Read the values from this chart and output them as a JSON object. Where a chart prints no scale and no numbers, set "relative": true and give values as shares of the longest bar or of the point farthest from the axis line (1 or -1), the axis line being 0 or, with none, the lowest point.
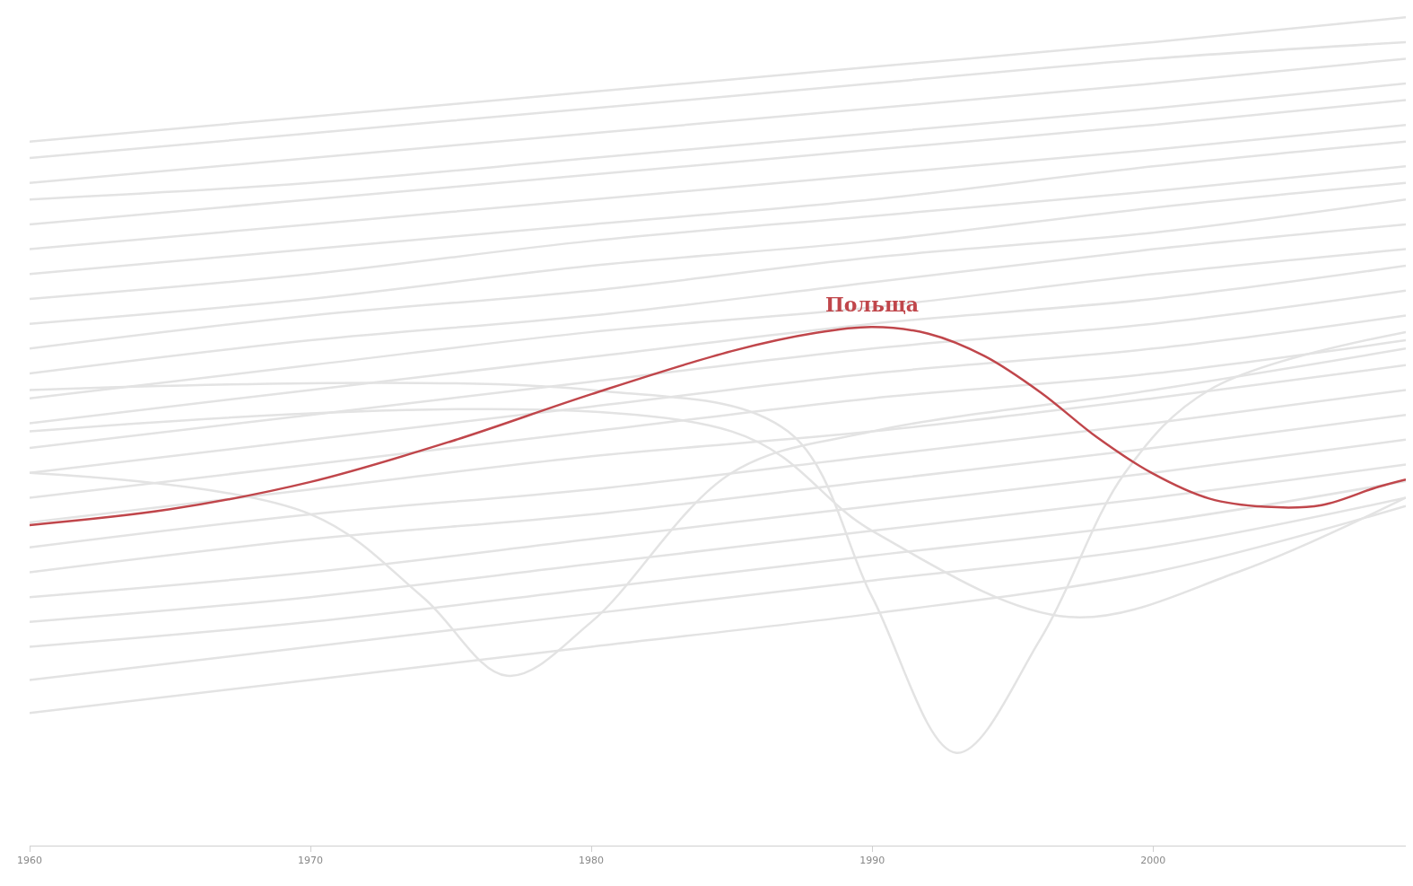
{
  "chart_data": {
    "type": "line",
    "relative": true,
    "marker": "none",
    "line_style": "solid",
    "xlim": [
      1960,
      2009
    ],
    "xticks": [
      1960,
      1970,
      1980,
      1990,
      2000
    ],
    "annotations": [
      {
        "text": "Польща",
        "x": 1990,
        "y": 0.626
      }
    ],
    "series": [
      {
        "color": "#e3e3e3",
        "x": [
          1960,
          1970,
          1980,
          1990,
          2000,
          2009
        ],
        "values": [
          0.85,
          0.88,
          0.91,
          0.94,
          0.97,
          1.0
        ]
      },
      {
        "color": "#e3e3e3",
        "x": [
          1960,
          1970,
          1980,
          1990,
          2000,
          2009
        ],
        "values": [
          0.83,
          0.86,
          0.89,
          0.92,
          0.95,
          0.97
        ]
      },
      {
        "color": "#e3e3e3",
        "x": [
          1960,
          1970,
          1980,
          1990,
          2000,
          2009
        ],
        "values": [
          0.8,
          0.83,
          0.86,
          0.89,
          0.92,
          0.95
        ]
      },
      {
        "color": "#e3e3e3",
        "x": [
          1960,
          1970,
          1980,
          1990,
          2000,
          2009
        ],
        "values": [
          0.78,
          0.8,
          0.83,
          0.86,
          0.89,
          0.92
        ]
      },
      {
        "color": "#e3e3e3",
        "x": [
          1960,
          1970,
          1980,
          1990,
          2000,
          2009
        ],
        "values": [
          0.75,
          0.78,
          0.81,
          0.84,
          0.87,
          0.9
        ]
      },
      {
        "color": "#e3e3e3",
        "x": [
          1960,
          1970,
          1980,
          1990,
          2000,
          2009
        ],
        "values": [
          0.72,
          0.75,
          0.78,
          0.81,
          0.84,
          0.87
        ]
      },
      {
        "color": "#e3e3e3",
        "x": [
          1960,
          1970,
          1980,
          1990,
          2000,
          2009
        ],
        "values": [
          0.69,
          0.72,
          0.75,
          0.78,
          0.82,
          0.85
        ]
      },
      {
        "color": "#e3e3e3",
        "x": [
          1960,
          1970,
          1980,
          1990,
          2000,
          2009
        ],
        "values": [
          0.66,
          0.69,
          0.73,
          0.76,
          0.79,
          0.82
        ]
      },
      {
        "color": "#e3e3e3",
        "x": [
          1960,
          1970,
          1980,
          1990,
          2000,
          2009
        ],
        "values": [
          0.63,
          0.66,
          0.7,
          0.73,
          0.77,
          0.8
        ]
      },
      {
        "color": "#e3e3e3",
        "x": [
          1960,
          1970,
          1980,
          1990,
          2000,
          2009
        ],
        "values": [
          0.6,
          0.64,
          0.67,
          0.71,
          0.74,
          0.78
        ]
      },
      {
        "color": "#e3e3e3",
        "x": [
          1960,
          1970,
          1980,
          1990,
          2000,
          2009
        ],
        "values": [
          0.57,
          0.61,
          0.64,
          0.68,
          0.72,
          0.75
        ]
      },
      {
        "color": "#e3e3e3",
        "x": [
          1960,
          1970,
          1980,
          1990,
          2000,
          2009
        ],
        "values": [
          0.54,
          0.58,
          0.62,
          0.65,
          0.69,
          0.72
        ]
      },
      {
        "color": "#e3e3e3",
        "x": [
          1960,
          1970,
          1980,
          1990,
          2000,
          2009
        ],
        "values": [
          0.51,
          0.55,
          0.59,
          0.63,
          0.66,
          0.7
        ]
      },
      {
        "color": "#e3e3e3",
        "x": [
          1960,
          1970,
          1980,
          1990,
          2000,
          2009
        ],
        "values": [
          0.48,
          0.52,
          0.56,
          0.6,
          0.63,
          0.67
        ]
      },
      {
        "color": "#e3e3e3",
        "x": [
          1960,
          1970,
          1980,
          1990,
          2000,
          2009
        ],
        "values": [
          0.45,
          0.49,
          0.53,
          0.57,
          0.6,
          0.64
        ]
      },
      {
        "color": "#e3e3e3",
        "x": [
          1960,
          1970,
          1980,
          1990,
          2000,
          2009
        ],
        "values": [
          0.42,
          0.46,
          0.5,
          0.54,
          0.57,
          0.61
        ]
      },
      {
        "color": "#e3e3e3",
        "x": [
          1960,
          1970,
          1980,
          1990,
          2000,
          2009
        ],
        "values": [
          0.39,
          0.43,
          0.47,
          0.5,
          0.54,
          0.58
        ]
      },
      {
        "color": "#e3e3e3",
        "x": [
          1960,
          1970,
          1980,
          1990,
          2000,
          2009
        ],
        "values": [
          0.36,
          0.4,
          0.43,
          0.47,
          0.51,
          0.55
        ]
      },
      {
        "color": "#e3e3e3",
        "x": [
          1960,
          1970,
          1980,
          1990,
          2000,
          2009
        ],
        "values": [
          0.33,
          0.37,
          0.4,
          0.44,
          0.48,
          0.52
        ]
      },
      {
        "color": "#e3e3e3",
        "x": [
          1960,
          1970,
          1980,
          1990,
          2000,
          2009
        ],
        "values": [
          0.3,
          0.33,
          0.37,
          0.41,
          0.45,
          0.49
        ]
      },
      {
        "color": "#e3e3e3",
        "x": [
          1960,
          1970,
          1980,
          1990,
          2000,
          2009
        ],
        "values": [
          0.27,
          0.3,
          0.34,
          0.38,
          0.42,
          0.46
        ]
      },
      {
        "color": "#e3e3e3",
        "x": [
          1960,
          1970,
          1980,
          1990,
          2000,
          2009
        ],
        "values": [
          0.24,
          0.27,
          0.31,
          0.35,
          0.39,
          0.44
        ]
      },
      {
        "color": "#e3e3e3",
        "x": [
          1960,
          1970,
          1980,
          1990,
          2000,
          2009
        ],
        "values": [
          0.2,
          0.24,
          0.28,
          0.32,
          0.36,
          0.42
        ]
      },
      {
        "color": "#e3e3e3",
        "x": [
          1960,
          1970,
          1980,
          1990,
          2000,
          2009
        ],
        "values": [
          0.16,
          0.2,
          0.24,
          0.28,
          0.33,
          0.41
        ]
      },
      {
        "color": "#e3e3e3",
        "x": [
          1960,
          1970,
          1974,
          1977,
          1980,
          1985,
          1990,
          2000,
          2009
        ],
        "values": [
          0.45,
          0.4,
          0.3,
          0.205,
          0.27,
          0.45,
          0.5,
          0.55,
          0.6
        ]
      },
      {
        "color": "#e3e3e3",
        "x": [
          1960,
          1980,
          1987,
          1990,
          1993,
          1996,
          1999,
          2002,
          2009
        ],
        "values": [
          0.55,
          0.55,
          0.5,
          0.3,
          0.112,
          0.25,
          0.45,
          0.55,
          0.62
        ]
      },
      {
        "color": "#e3e3e3",
        "x": [
          1960,
          1985,
          1990,
          1997,
          2003,
          2009
        ],
        "values": [
          0.5,
          0.5,
          0.38,
          0.276,
          0.33,
          0.42
        ]
      },
      {
        "color": "#c0464b",
        "x": [
          1960,
          1965,
          1970,
          1975,
          1980,
          1985,
          1988,
          1990,
          1992,
          1994,
          1996,
          1998,
          2000,
          2002,
          2004,
          2006,
          2008,
          2009
        ],
        "values": [
          0.387,
          0.406,
          0.439,
          0.488,
          0.545,
          0.597,
          0.619,
          0.626,
          0.618,
          0.591,
          0.547,
          0.493,
          0.449,
          0.419,
          0.409,
          0.411,
          0.433,
          0.442
        ]
      }
    ]
  }
}
